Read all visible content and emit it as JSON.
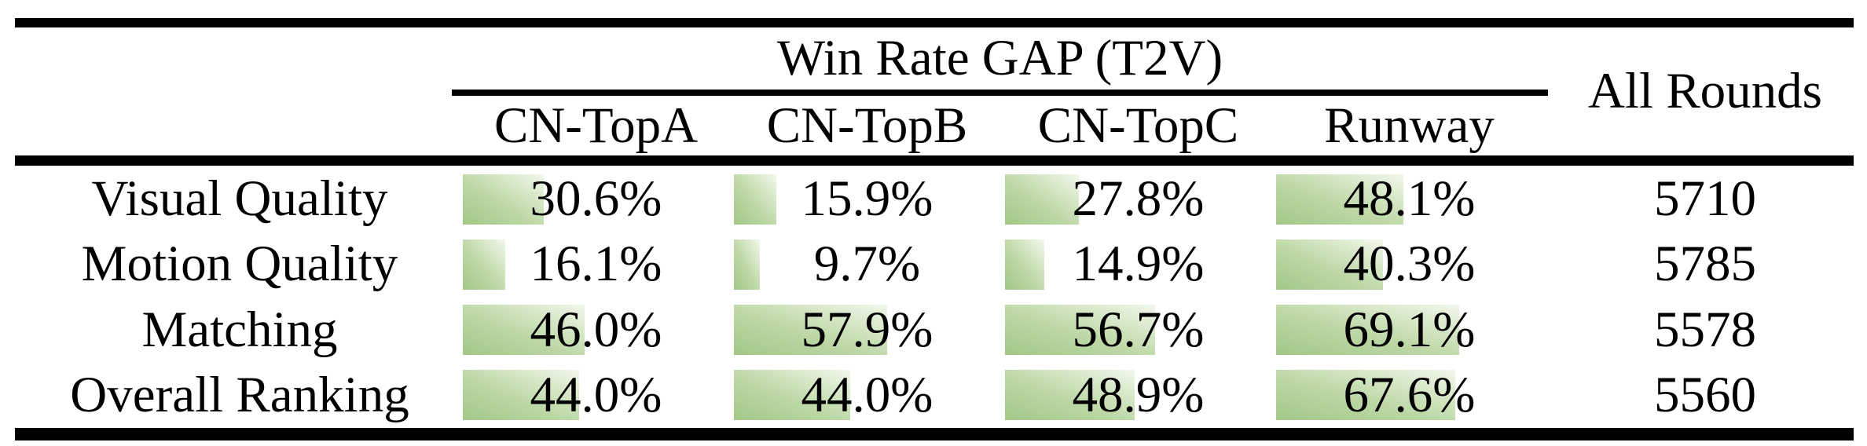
{
  "table": {
    "group_header": "Win Rate GAP (T2V)",
    "all_rounds_label": "All Rounds",
    "columns": [
      "CN-TopA",
      "CN-TopB",
      "CN-TopC",
      "Runway"
    ],
    "rows": [
      {
        "label": "Visual Quality",
        "values": [
          "30.6%",
          "15.9%",
          "27.8%",
          "48.1%"
        ],
        "all_rounds": "5710"
      },
      {
        "label": "Motion Quality",
        "values": [
          "16.1%",
          "9.7%",
          "14.9%",
          "40.3%"
        ],
        "all_rounds": "5785"
      },
      {
        "label": "Matching",
        "values": [
          "46.0%",
          "57.9%",
          "56.7%",
          "69.1%"
        ],
        "all_rounds": "5578"
      },
      {
        "label": "Overall Ranking",
        "values": [
          "44.0%",
          "44.0%",
          "48.9%",
          "67.6%"
        ],
        "all_rounds": "5560"
      }
    ],
    "bar_color": "#a3c787",
    "text_color": "#000000"
  },
  "chart_data": {
    "type": "table",
    "title": "Win Rate GAP (T2V)",
    "row_labels": [
      "Visual Quality",
      "Motion Quality",
      "Matching",
      "Overall Ranking"
    ],
    "columns": [
      "CN-TopA",
      "CN-TopB",
      "CN-TopC",
      "Runway",
      "All Rounds"
    ],
    "series": [
      {
        "name": "CN-TopA",
        "values": [
          30.6,
          16.1,
          46.0,
          44.0
        ]
      },
      {
        "name": "CN-TopB",
        "values": [
          15.9,
          9.7,
          57.9,
          44.0
        ]
      },
      {
        "name": "CN-TopC",
        "values": [
          27.8,
          14.9,
          56.7,
          48.9
        ]
      },
      {
        "name": "Runway",
        "values": [
          48.1,
          40.3,
          69.1,
          67.6
        ]
      }
    ],
    "all_rounds": [
      5710,
      5785,
      5578,
      5560
    ],
    "value_unit": "percent",
    "bar_scale_range": [
      0,
      100
    ]
  }
}
